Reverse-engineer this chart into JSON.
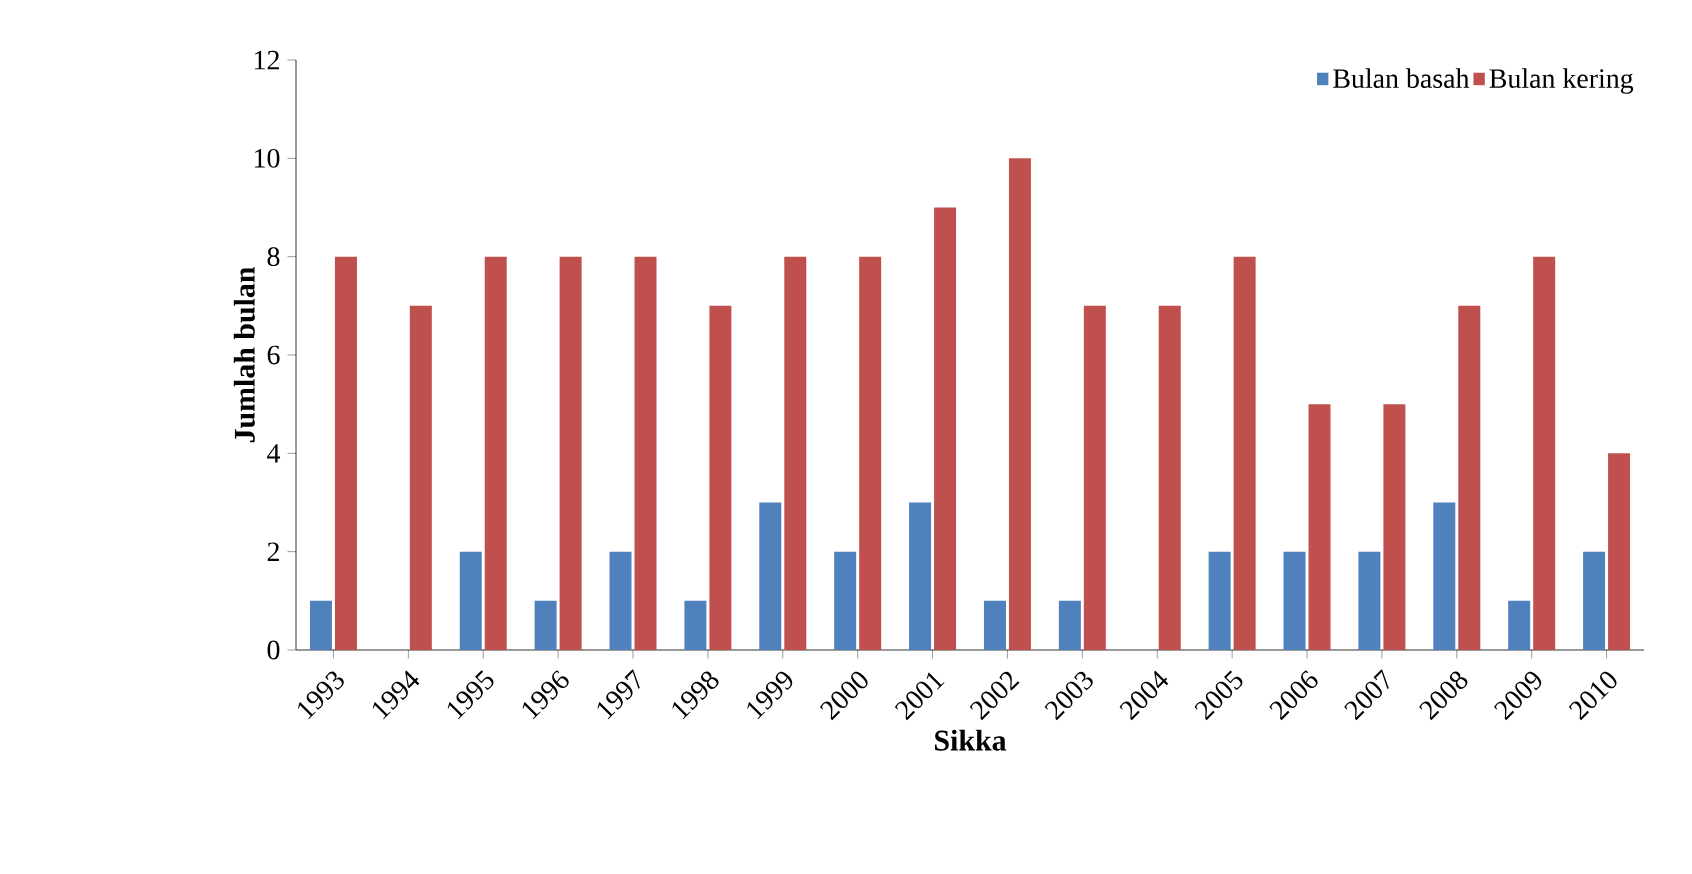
{
  "chart_data": {
    "type": "bar",
    "xlabel": "Sikka",
    "ylabel": "Jumlah bulan",
    "categories": [
      "1993",
      "1994",
      "1995",
      "1996",
      "1997",
      "1998",
      "1999",
      "2000",
      "2001",
      "2002",
      "2003",
      "2004",
      "2005",
      "2006",
      "2007",
      "2008",
      "2009",
      "2010"
    ],
    "series": [
      {
        "name": "Bulan basah",
        "color": "#4f81bd",
        "values": [
          1,
          0,
          2,
          1,
          2,
          1,
          3,
          2,
          3,
          1,
          1,
          0,
          2,
          2,
          2,
          3,
          1,
          2
        ]
      },
      {
        "name": "Bulan kering",
        "color": "#c0504d",
        "values": [
          8,
          7,
          8,
          8,
          8,
          7,
          8,
          8,
          9,
          10,
          7,
          7,
          8,
          5,
          5,
          7,
          8,
          4
        ]
      }
    ],
    "ylim": [
      0,
      12
    ],
    "yticks": [
      0,
      2,
      4,
      6,
      8,
      10,
      12
    ],
    "legend": "top right"
  }
}
